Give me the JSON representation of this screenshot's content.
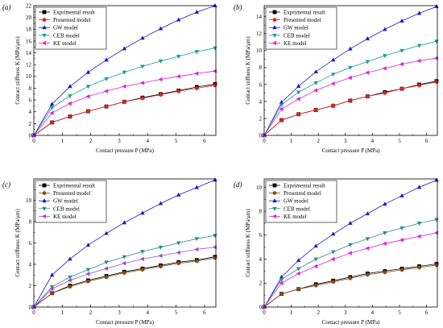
{
  "chart_data": [
    {
      "type": "line",
      "panel_label": "(a)",
      "xlabel": "Contact pressure P (MPa)",
      "ylabel": "Contact stiffness K (MPa/μm)",
      "xlim": [
        0,
        6.4
      ],
      "ylim": [
        0,
        22
      ],
      "xticks": [
        0,
        1,
        2,
        3,
        4,
        5,
        6
      ],
      "yticks": [
        0,
        2,
        4,
        6,
        8,
        10,
        12,
        14,
        16,
        18,
        20,
        22
      ],
      "x": [
        0,
        0.64,
        1.27,
        1.91,
        2.55,
        3.18,
        3.82,
        4.46,
        5.09,
        5.73,
        6.37
      ],
      "legend_position": "top-left",
      "series": [
        {
          "name": "Exprimental result",
          "color": "#000000",
          "marker": "square",
          "values": [
            0,
            2.2,
            3.2,
            4.1,
            4.9,
            5.7,
            6.4,
            7.0,
            7.6,
            8.2,
            8.7
          ]
        },
        {
          "name": "Presented model",
          "color": "#e02020",
          "marker": "circle",
          "values": [
            0,
            2.2,
            3.2,
            4.1,
            4.9,
            5.7,
            6.3,
            6.9,
            7.5,
            8.0,
            8.5
          ]
        },
        {
          "name": "GW model",
          "color": "#1a1acc",
          "marker": "triangle-up",
          "values": [
            0,
            5.3,
            8.3,
            10.7,
            12.8,
            14.7,
            16.5,
            18.1,
            19.6,
            20.9,
            22.0
          ]
        },
        {
          "name": "CEB model",
          "color": "#1a9a9a",
          "marker": "triangle-down",
          "values": [
            0,
            4.7,
            6.7,
            8.3,
            9.6,
            10.7,
            11.7,
            12.6,
            13.4,
            14.2,
            14.8
          ]
        },
        {
          "name": "KE model",
          "color": "#e020e0",
          "marker": "triangle-left",
          "values": [
            0,
            3.8,
            5.4,
            6.6,
            7.5,
            8.3,
            8.9,
            9.5,
            10.0,
            10.5,
            10.9
          ]
        }
      ]
    },
    {
      "type": "line",
      "panel_label": "(b)",
      "xlabel": "Contact pressure P (MPa)",
      "ylabel": "Contact stiffness K (MPa/μm)",
      "xlim": [
        0,
        6.4
      ],
      "ylim": [
        0,
        15.3
      ],
      "xticks": [
        0,
        1,
        2,
        3,
        4,
        5,
        6
      ],
      "yticks": [
        0,
        2,
        4,
        6,
        8,
        10,
        12,
        14
      ],
      "x": [
        0,
        0.64,
        1.27,
        1.91,
        2.55,
        3.18,
        3.82,
        4.46,
        5.09,
        5.73,
        6.37
      ],
      "legend_position": "top-left",
      "series": [
        {
          "name": "Exprimental result",
          "color": "#000000",
          "marker": "square",
          "values": [
            0,
            1.8,
            2.5,
            3.0,
            3.5,
            4.1,
            4.6,
            5.1,
            5.5,
            6.0,
            6.4
          ]
        },
        {
          "name": "Presented model",
          "color": "#e02020",
          "marker": "circle",
          "values": [
            0,
            1.8,
            2.5,
            3.0,
            3.5,
            4.1,
            4.6,
            5.0,
            5.5,
            5.9,
            6.3
          ]
        },
        {
          "name": "GW model",
          "color": "#1a1acc",
          "marker": "triangle-up",
          "values": [
            0,
            3.9,
            5.8,
            7.5,
            8.9,
            10.2,
            11.4,
            12.5,
            13.5,
            14.4,
            15.2
          ]
        },
        {
          "name": "CEB model",
          "color": "#1a9a9a",
          "marker": "triangle-down",
          "values": [
            0,
            3.6,
            5.1,
            6.2,
            7.2,
            8.0,
            8.7,
            9.4,
            10.0,
            10.6,
            11.1
          ]
        },
        {
          "name": "KE model",
          "color": "#e020e0",
          "marker": "triangle-left",
          "values": [
            0,
            3.1,
            4.3,
            5.3,
            6.1,
            6.8,
            7.4,
            7.9,
            8.4,
            8.8,
            9.1
          ]
        }
      ]
    },
    {
      "type": "line",
      "panel_label": "(c)",
      "xlabel": "Contact pressure P (MPa)",
      "ylabel": "Contact stiffness K (MPa/μm)",
      "xlim": [
        0,
        6.4
      ],
      "ylim": [
        0,
        12
      ],
      "xticks": [
        0,
        1,
        2,
        3,
        4,
        5,
        6
      ],
      "yticks": [
        0,
        2,
        4,
        6,
        8,
        10
      ],
      "x": [
        0,
        0.64,
        1.27,
        1.91,
        2.55,
        3.18,
        3.82,
        4.46,
        5.09,
        5.73,
        6.37
      ],
      "legend_position": "top-left",
      "series": [
        {
          "name": "Exprimental result",
          "color": "#000000",
          "marker": "square",
          "values": [
            0,
            1.3,
            2.0,
            2.5,
            2.9,
            3.3,
            3.6,
            3.9,
            4.2,
            4.4,
            4.7
          ]
        },
        {
          "name": "Presented model",
          "color": "#8b4a14",
          "marker": "circle",
          "values": [
            0,
            1.3,
            1.9,
            2.4,
            2.8,
            3.2,
            3.5,
            3.8,
            4.1,
            4.3,
            4.6
          ]
        },
        {
          "name": "GW model",
          "color": "#1a1acc",
          "marker": "triangle-up",
          "values": [
            0,
            3.0,
            4.5,
            5.8,
            6.9,
            7.9,
            8.8,
            9.7,
            10.5,
            11.2,
            11.9
          ]
        },
        {
          "name": "CEB model",
          "color": "#2a8a8a",
          "marker": "triangle-down",
          "values": [
            0,
            1.9,
            2.8,
            3.5,
            4.2,
            4.7,
            5.2,
            5.6,
            6.0,
            6.4,
            6.7
          ]
        },
        {
          "name": "KE model",
          "color": "#9a4ad0",
          "marker": "triangle-left",
          "values": [
            0,
            1.7,
            2.5,
            3.1,
            3.6,
            4.1,
            4.5,
            4.8,
            5.1,
            5.4,
            5.6
          ]
        }
      ]
    },
    {
      "type": "line",
      "panel_label": "(d)",
      "xlabel": "Contact pressure P (MPa)",
      "ylabel": "Contact stiffness K (MPa/μm)",
      "xlim": [
        0,
        6.4
      ],
      "ylim": [
        0,
        10.7
      ],
      "xticks": [
        0,
        1,
        2,
        3,
        4,
        5,
        6
      ],
      "yticks": [
        0,
        2,
        4,
        6,
        8,
        10
      ],
      "x": [
        0,
        0.64,
        1.27,
        1.91,
        2.55,
        3.18,
        3.82,
        4.46,
        5.09,
        5.73,
        6.37
      ],
      "legend_position": "top-left",
      "series": [
        {
          "name": "Exprimental result",
          "color": "#000000",
          "marker": "square",
          "values": [
            0,
            1.1,
            1.5,
            1.9,
            2.2,
            2.5,
            2.8,
            3.0,
            3.2,
            3.4,
            3.6
          ]
        },
        {
          "name": "Presented model",
          "color": "#8b4a14",
          "marker": "circle",
          "values": [
            0,
            1.1,
            1.5,
            1.8,
            2.1,
            2.4,
            2.7,
            2.9,
            3.1,
            3.3,
            3.5
          ]
        },
        {
          "name": "GW model",
          "color": "#1a1acc",
          "marker": "triangle-up",
          "values": [
            0,
            2.5,
            3.9,
            5.1,
            6.1,
            7.0,
            7.8,
            8.6,
            9.3,
            10.0,
            10.6
          ]
        },
        {
          "name": "CEB model",
          "color": "#2a8a8a",
          "marker": "triangle-down",
          "values": [
            0,
            2.3,
            3.2,
            4.0,
            4.6,
            5.2,
            5.7,
            6.2,
            6.6,
            7.0,
            7.3
          ]
        },
        {
          "name": "KE model",
          "color": "#e020e0",
          "marker": "triangle-left",
          "values": [
            0,
            2.0,
            2.8,
            3.4,
            4.0,
            4.5,
            4.9,
            5.3,
            5.6,
            5.9,
            6.2
          ]
        }
      ]
    }
  ]
}
